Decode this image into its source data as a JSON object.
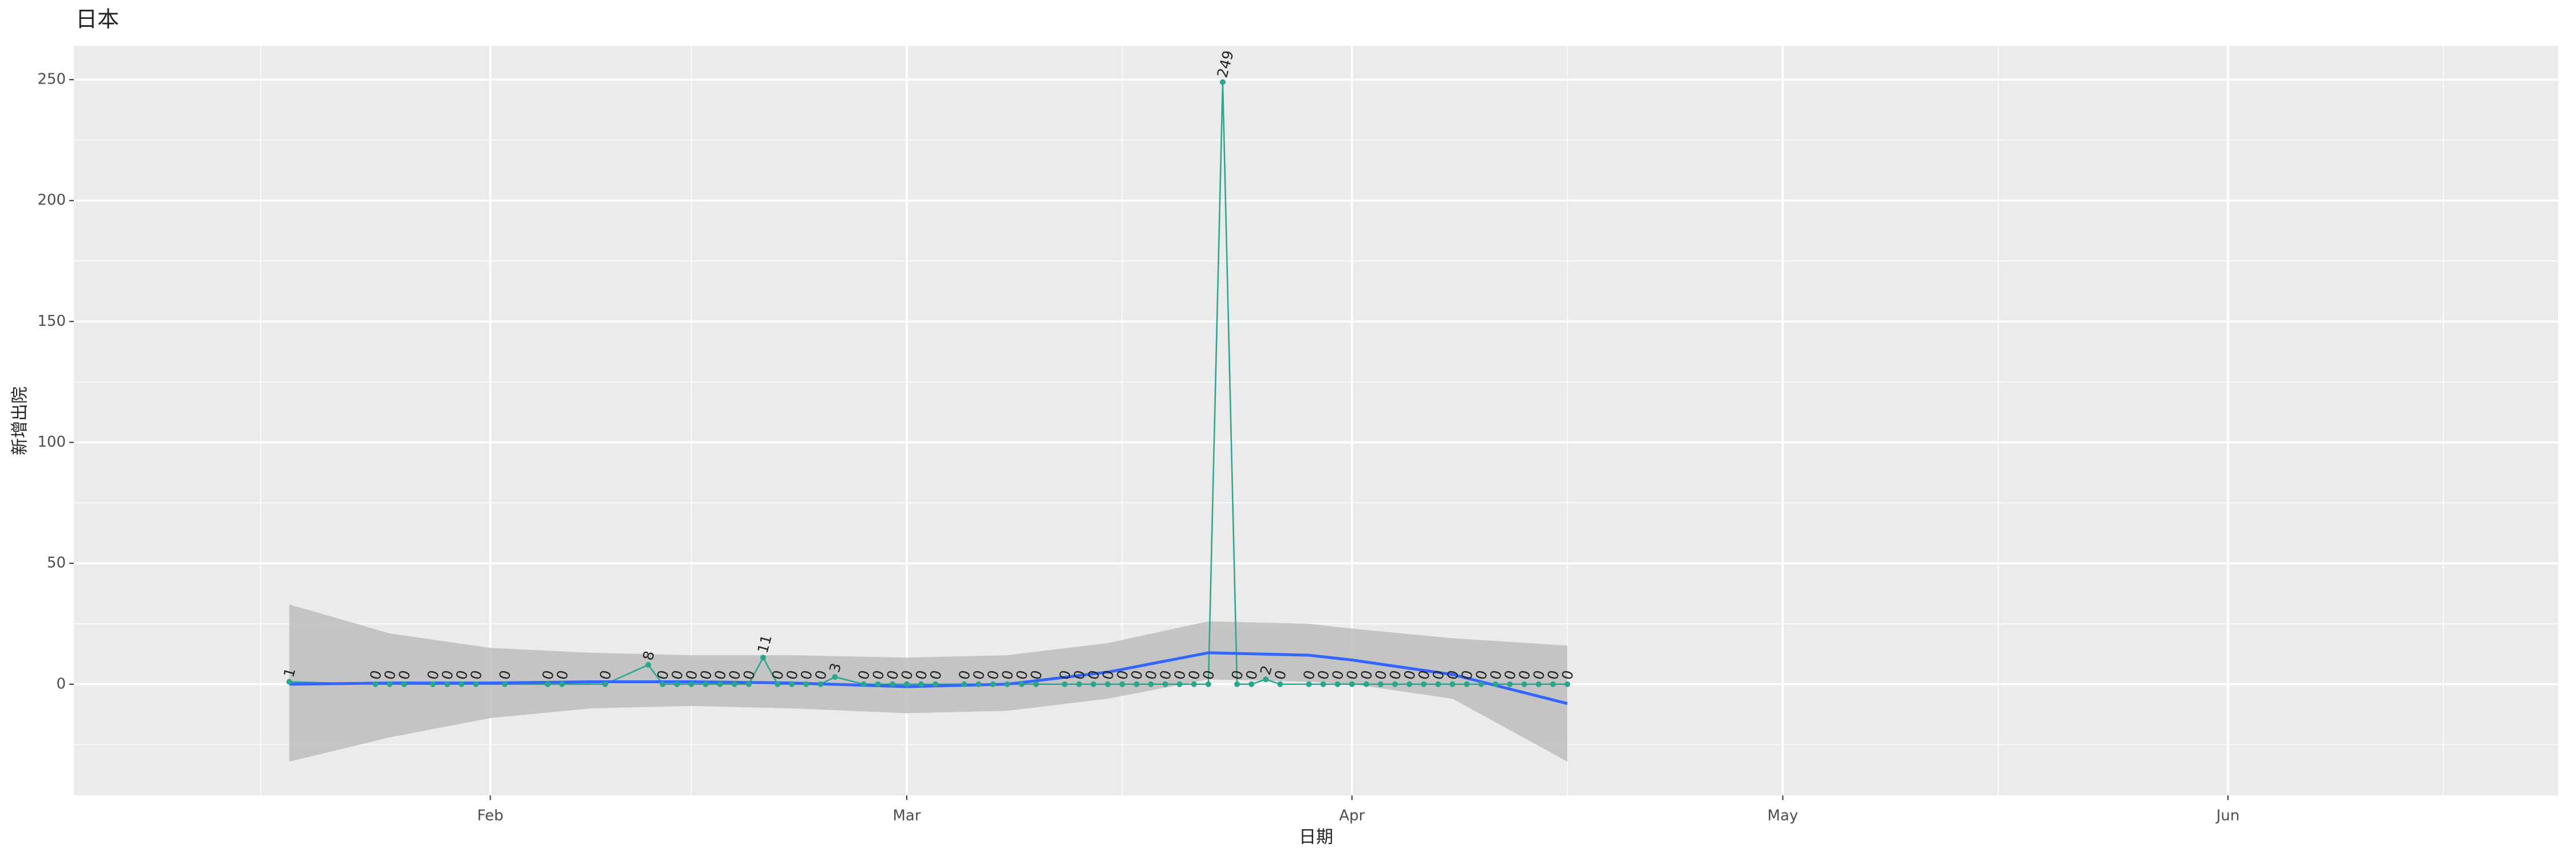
{
  "chart_data": {
    "type": "line",
    "title": "日本",
    "xlabel": "日期",
    "ylabel": "新增出院",
    "x": [
      "01-18",
      "01-24",
      "01-25",
      "01-26",
      "01-28",
      "01-29",
      "01-30",
      "01-31",
      "02-02",
      "02-05",
      "02-06",
      "02-09",
      "02-12",
      "02-13",
      "02-14",
      "02-15",
      "02-16",
      "02-17",
      "02-18",
      "02-19",
      "02-20",
      "02-21",
      "02-22",
      "02-23",
      "02-24",
      "02-25",
      "02-27",
      "02-28",
      "02-29",
      "03-01",
      "03-02",
      "03-03",
      "03-05",
      "03-06",
      "03-07",
      "03-08",
      "03-09",
      "03-10",
      "03-12",
      "03-13",
      "03-14",
      "03-15",
      "03-16",
      "03-17",
      "03-18",
      "03-19",
      "03-20",
      "03-21",
      "03-22",
      "03-23",
      "03-24",
      "03-25",
      "03-26",
      "03-27",
      "03-29",
      "03-30",
      "03-31",
      "04-01",
      "04-02",
      "04-03",
      "04-04",
      "04-05",
      "04-06",
      "04-07",
      "04-08",
      "04-09",
      "04-10",
      "04-11",
      "04-12",
      "04-13",
      "04-14",
      "04-15",
      "04-16"
    ],
    "values": [
      1,
      0,
      0,
      0,
      0,
      0,
      0,
      0,
      0,
      0,
      0,
      0,
      8,
      0,
      0,
      0,
      0,
      0,
      0,
      0,
      11,
      0,
      0,
      0,
      0,
      3,
      0,
      0,
      0,
      0,
      0,
      0,
      0,
      0,
      0,
      0,
      0,
      0,
      0,
      0,
      0,
      0,
      0,
      0,
      0,
      0,
      0,
      0,
      0,
      249,
      0,
      0,
      2,
      0,
      0,
      0,
      0,
      0,
      0,
      0,
      0,
      0,
      0,
      0,
      0,
      0,
      0,
      0,
      0,
      0,
      0,
      0,
      0
    ],
    "color": "#2ca58d",
    "smooth": {
      "x": [
        "01-18",
        "01-25",
        "02-01",
        "02-08",
        "02-15",
        "02-22",
        "03-01",
        "03-08",
        "03-15",
        "03-22",
        "03-29",
        "04-01",
        "04-08",
        "04-16"
      ],
      "values": [
        0,
        0.5,
        0.5,
        1,
        1,
        0.5,
        -1,
        0,
        5,
        13,
        12,
        10,
        4,
        -8
      ],
      "lower": [
        -32,
        -22,
        -14,
        -10,
        -9,
        -10,
        -12,
        -11,
        -6,
        2,
        1,
        0,
        -6,
        -32
      ],
      "upper": [
        33,
        21,
        15,
        13,
        12,
        12,
        11,
        12,
        17,
        26,
        25,
        23,
        19,
        16
      ],
      "color": "#3366ff",
      "band_color": "#bdbdbd"
    },
    "xlim": [
      "01-03",
      "06-24"
    ],
    "xticks": [
      {
        "value": "02-01",
        "label": "Feb"
      },
      {
        "value": "03-01",
        "label": "Mar"
      },
      {
        "value": "04-01",
        "label": "Apr"
      },
      {
        "value": "05-01",
        "label": "May"
      },
      {
        "value": "06-01",
        "label": "Jun"
      }
    ],
    "xminorticks": [
      "01-16",
      "02-15",
      "03-16",
      "04-16",
      "05-16",
      "06-16"
    ],
    "ylim": [
      -46,
      264
    ],
    "yticks": [
      0,
      50,
      100,
      150,
      200,
      250
    ],
    "yminorticks": [
      -25,
      25,
      75,
      125,
      175,
      225
    ],
    "grid": true
  }
}
